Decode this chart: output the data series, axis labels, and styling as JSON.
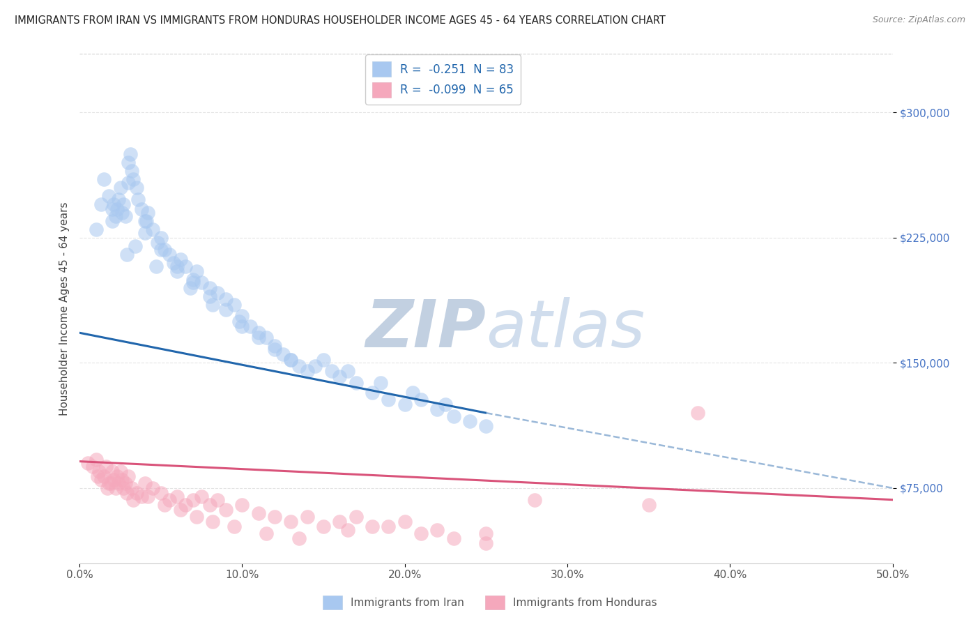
{
  "title": "IMMIGRANTS FROM IRAN VS IMMIGRANTS FROM HONDURAS HOUSEHOLDER INCOME AGES 45 - 64 YEARS CORRELATION CHART",
  "source": "Source: ZipAtlas.com",
  "ylabel": "Householder Income Ages 45 - 64 years",
  "xlim": [
    0.0,
    50.0
  ],
  "ylim": [
    30000,
    335000
  ],
  "yticks": [
    75000,
    150000,
    225000,
    300000
  ],
  "ytick_labels": [
    "$75,000",
    "$150,000",
    "$225,000",
    "$300,000"
  ],
  "xticks": [
    0.0,
    10.0,
    20.0,
    30.0,
    40.0,
    50.0
  ],
  "xtick_labels": [
    "0.0%",
    "10.0%",
    "20.0%",
    "30.0%",
    "40.0%",
    "50.0%"
  ],
  "iran_color": "#a8c8f0",
  "iran_line_color": "#2166ac",
  "honduras_color": "#f5a8bc",
  "honduras_line_color": "#d9537a",
  "dashed_line_color": "#9ab8d8",
  "background_color": "#ffffff",
  "grid_color": "#e0e0e0",
  "watermark_text": "ZIPatlas",
  "watermark_color": "#ccd8ea",
  "legend_iran_label": "R =  -0.251  N = 83",
  "legend_honduras_label": "R =  -0.099  N = 65",
  "legend_R_color": "#2166ac",
  "legend_N_color": "#2166ac",
  "iran_label": "Immigrants from Iran",
  "honduras_label": "Immigrants from Honduras",
  "iran_x": [
    1.5,
    1.8,
    2.0,
    2.1,
    2.2,
    2.3,
    2.4,
    2.5,
    2.6,
    2.7,
    2.8,
    3.0,
    3.1,
    3.2,
    3.3,
    3.5,
    3.6,
    3.8,
    4.0,
    4.2,
    4.5,
    4.8,
    5.0,
    5.2,
    5.5,
    5.8,
    6.0,
    6.2,
    6.5,
    7.0,
    7.2,
    7.5,
    8.0,
    8.5,
    9.0,
    9.5,
    10.0,
    10.5,
    11.0,
    11.5,
    12.0,
    12.5,
    13.0,
    13.5,
    14.0,
    14.5,
    15.0,
    15.5,
    16.0,
    17.0,
    18.0,
    19.0,
    20.0,
    21.0,
    22.0,
    23.0,
    24.0,
    25.0,
    1.0,
    1.3,
    2.9,
    3.4,
    4.1,
    4.7,
    6.8,
    8.2,
    9.8,
    16.5,
    18.5,
    20.5,
    22.5,
    2.0,
    3.0,
    4.0,
    5.0,
    6.0,
    7.0,
    8.0,
    9.0,
    10.0,
    11.0,
    12.0,
    13.0
  ],
  "iran_y": [
    260000,
    250000,
    235000,
    245000,
    238000,
    242000,
    248000,
    255000,
    240000,
    245000,
    238000,
    270000,
    275000,
    265000,
    260000,
    255000,
    248000,
    242000,
    235000,
    240000,
    230000,
    222000,
    225000,
    218000,
    215000,
    210000,
    205000,
    212000,
    208000,
    200000,
    205000,
    198000,
    195000,
    192000,
    188000,
    185000,
    178000,
    172000,
    168000,
    165000,
    160000,
    155000,
    152000,
    148000,
    145000,
    148000,
    152000,
    145000,
    142000,
    138000,
    132000,
    128000,
    125000,
    128000,
    122000,
    118000,
    115000,
    112000,
    230000,
    245000,
    215000,
    220000,
    235000,
    208000,
    195000,
    185000,
    175000,
    145000,
    138000,
    132000,
    125000,
    242000,
    258000,
    228000,
    218000,
    208000,
    198000,
    190000,
    182000,
    172000,
    165000,
    158000,
    152000
  ],
  "honduras_x": [
    0.5,
    0.8,
    1.0,
    1.2,
    1.5,
    1.6,
    1.8,
    2.0,
    2.1,
    2.2,
    2.3,
    2.4,
    2.5,
    2.6,
    2.7,
    2.8,
    3.0,
    3.2,
    3.5,
    3.8,
    4.0,
    4.5,
    5.0,
    5.5,
    6.0,
    6.5,
    7.0,
    7.5,
    8.0,
    8.5,
    9.0,
    10.0,
    11.0,
    12.0,
    13.0,
    14.0,
    15.0,
    16.0,
    17.0,
    18.0,
    20.0,
    22.0,
    25.0,
    28.0,
    35.0,
    38.0,
    1.1,
    1.3,
    1.7,
    1.9,
    2.9,
    3.3,
    4.2,
    5.2,
    6.2,
    7.2,
    8.2,
    9.5,
    11.5,
    13.5,
    16.5,
    19.0,
    21.0,
    23.0,
    25.0
  ],
  "honduras_y": [
    90000,
    88000,
    92000,
    85000,
    82000,
    88000,
    78000,
    85000,
    80000,
    75000,
    82000,
    78000,
    85000,
    80000,
    75000,
    78000,
    82000,
    75000,
    72000,
    70000,
    78000,
    75000,
    72000,
    68000,
    70000,
    65000,
    68000,
    70000,
    65000,
    68000,
    62000,
    65000,
    60000,
    58000,
    55000,
    58000,
    52000,
    55000,
    58000,
    52000,
    55000,
    50000,
    48000,
    68000,
    65000,
    120000,
    82000,
    80000,
    75000,
    78000,
    72000,
    68000,
    70000,
    65000,
    62000,
    58000,
    55000,
    52000,
    48000,
    45000,
    50000,
    52000,
    48000,
    45000,
    42000
  ],
  "iran_trend_x0": 0.0,
  "iran_trend_x1": 25.0,
  "iran_trend_y0": 168000,
  "iran_trend_y1": 120000,
  "honduras_trend_x0": 0.0,
  "honduras_trend_x1": 50.0,
  "honduras_trend_y0": 91000,
  "honduras_trend_y1": 68000,
  "dashed_x0": 25.0,
  "dashed_x1": 50.0,
  "dashed_y0": 120000,
  "dashed_y1": 75000
}
